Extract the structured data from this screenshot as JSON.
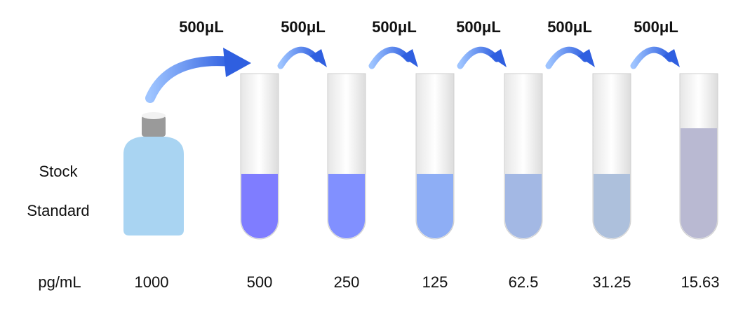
{
  "transfers": [
    "500μL",
    "500μL",
    "500μL",
    "500μL",
    "500μL",
    "500μL"
  ],
  "stock_label": {
    "line1": "Stock",
    "line2": "Standard"
  },
  "unit_label": "pg/mL",
  "concentrations": [
    "1000",
    "500",
    "250",
    "125",
    "62.5",
    "31.25",
    "15.63"
  ]
}
